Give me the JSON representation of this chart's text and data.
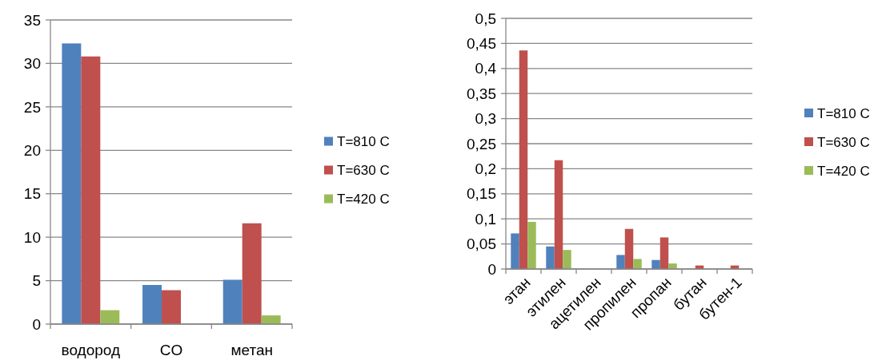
{
  "chart_data": [
    {
      "type": "bar",
      "categories": [
        "водород",
        "CO",
        "метан"
      ],
      "series": [
        {
          "name": "T=810 C",
          "color": "#4f81bd",
          "values": [
            32.3,
            4.5,
            5.1
          ]
        },
        {
          "name": "T=630 C",
          "color": "#c0504d",
          "values": [
            30.8,
            3.9,
            11.6
          ]
        },
        {
          "name": "T=420 C",
          "color": "#9bbb59",
          "values": [
            1.6,
            null,
            1.0
          ]
        }
      ],
      "ylim": [
        0,
        35
      ],
      "yticks": [
        0,
        5,
        10,
        15,
        20,
        25,
        30,
        35
      ],
      "grid": "y",
      "legend": "right"
    },
    {
      "type": "bar",
      "categories": [
        "этан",
        "этилен",
        "ацетилен",
        "пропилен",
        "пропан",
        "бутан",
        "бутен-1"
      ],
      "series": [
        {
          "name": "T=810 C",
          "color": "#4f81bd",
          "values": [
            0.071,
            0.045,
            null,
            0.028,
            0.018,
            null,
            null
          ]
        },
        {
          "name": "T=630 C",
          "color": "#c0504d",
          "values": [
            0.436,
            0.217,
            null,
            0.08,
            0.063,
            0.007,
            0.007
          ]
        },
        {
          "name": "T=420 C",
          "color": "#9bbb59",
          "values": [
            0.094,
            0.038,
            null,
            0.02,
            0.011,
            null,
            null
          ]
        }
      ],
      "ylim": [
        0,
        0.5
      ],
      "yticks": [
        0,
        {
          "value": 0.05,
          "label": "0,05"
        },
        {
          "value": 0.1,
          "label": "0,1"
        },
        {
          "value": 0.15,
          "label": "0,15"
        },
        {
          "value": 0.2,
          "label": "0,2"
        },
        {
          "value": 0.25,
          "label": "0,25"
        },
        {
          "value": 0.3,
          "label": "0,3"
        },
        {
          "value": 0.35,
          "label": "0,35"
        },
        {
          "value": 0.4,
          "label": "0,4"
        },
        {
          "value": 0.45,
          "label": "0,45"
        },
        {
          "value": 0.5,
          "label": "0,5"
        }
      ],
      "grid": "y",
      "legend": "right"
    }
  ]
}
